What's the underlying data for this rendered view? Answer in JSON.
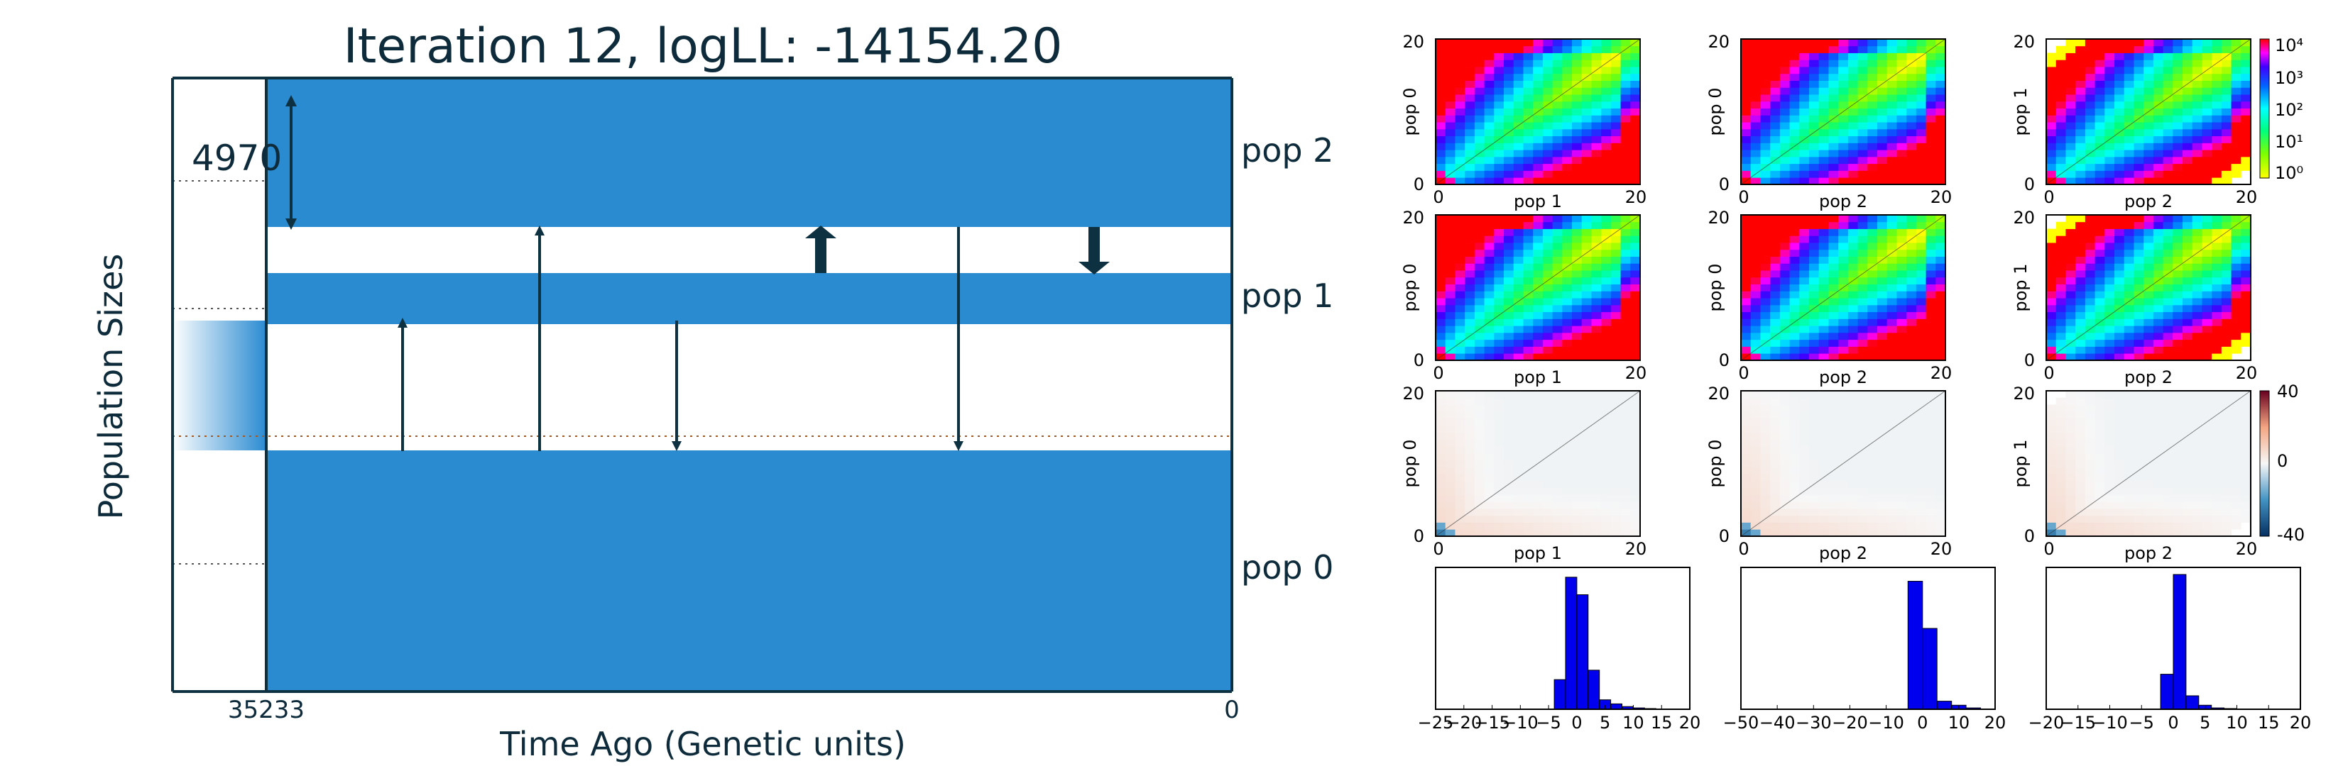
{
  "main": {
    "title": "Iteration 12, logLL:  -14154.20",
    "ylabel": "Population Sizes",
    "xlabel": "Time Ago (Genetic units)",
    "x_tick_left": "35233",
    "x_tick_right": "0",
    "size_label": "4970",
    "pop_labels": [
      "pop 2",
      "pop 1",
      "pop 0"
    ],
    "bar_color": "#2a8bd1",
    "line_color": "#0d3140"
  },
  "panels": {
    "sfs_rows": [
      [
        {
          "ylabel": "pop 0",
          "xlabel": "pop 1"
        },
        {
          "ylabel": "pop 0",
          "xlabel": "pop 2"
        },
        {
          "ylabel": "pop 1",
          "xlabel": "pop 2"
        }
      ],
      [
        {
          "ylabel": "pop 0",
          "xlabel": "pop 1"
        },
        {
          "ylabel": "pop 0",
          "xlabel": "pop 2"
        },
        {
          "ylabel": "pop 1",
          "xlabel": "pop 2"
        }
      ],
      [
        {
          "ylabel": "pop 0",
          "xlabel": "pop 1"
        },
        {
          "ylabel": "pop 0",
          "xlabel": "pop 2"
        },
        {
          "ylabel": "pop 1",
          "xlabel": "pop 2"
        }
      ]
    ],
    "tick_min": "0",
    "tick_max": "20",
    "log_colorbar_ticks": [
      "10⁴",
      "10³",
      "10²",
      "10¹",
      "10⁰"
    ],
    "resid_colorbar_ticks": [
      "40",
      "0",
      "-40"
    ],
    "hist_xticks": [
      [
        "−25",
        "−20",
        "−15",
        "−10",
        "−5",
        "0",
        "5",
        "10",
        "15",
        "20"
      ],
      [
        "−50",
        "−40",
        "−30",
        "−20",
        "−10",
        "0",
        "10",
        "20"
      ],
      [
        "−20",
        "−15",
        "−10",
        "−5",
        "0",
        "5",
        "10",
        "15",
        "20"
      ]
    ]
  },
  "chart_data": [
    {
      "type": "bar",
      "title": "Iteration 12, logLL:  -14154.20",
      "xlabel": "Time Ago (Genetic units)",
      "ylabel": "Population Sizes",
      "xlim": [
        35233,
        0
      ],
      "populations": [
        "pop 2",
        "pop 1",
        "pop 0"
      ],
      "reference_size": 4970,
      "migration_pulses": 7
    },
    {
      "type": "heatmap",
      "panels": 9,
      "axes_range": [
        0,
        20
      ],
      "colorbar_log": [
        "10^4",
        "10^3",
        "10^2",
        "10^1",
        "10^0"
      ],
      "colorbar_residual": [
        40,
        0,
        -40
      ]
    },
    {
      "type": "bar",
      "panels": [
        {
          "xlim": [
            -25,
            20
          ],
          "bins": [
            -3,
            -1,
            1,
            3,
            5,
            7,
            9,
            11,
            13
          ],
          "counts": [
            0.22,
            0.98,
            0.85,
            0.29,
            0.07,
            0.04,
            0.02,
            0.01,
            0.005
          ]
        },
        {
          "xlim": [
            -50,
            20
          ],
          "bins": [
            -2,
            2,
            6,
            10,
            14
          ],
          "counts": [
            0.95,
            0.6,
            0.06,
            0.03,
            0.01
          ]
        },
        {
          "xlim": [
            -20,
            20
          ],
          "bins": [
            -1,
            1,
            3,
            5,
            7,
            9
          ],
          "counts": [
            0.26,
            1.0,
            0.1,
            0.03,
            0.01,
            0.005
          ]
        }
      ]
    }
  ]
}
